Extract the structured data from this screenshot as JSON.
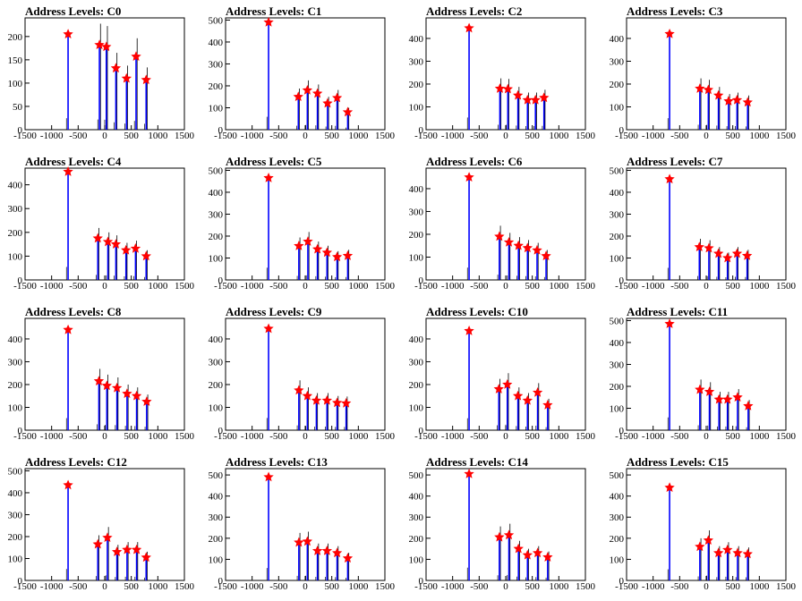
{
  "figure": {
    "xticks": [
      -1500,
      -1000,
      -500,
      0,
      500,
      1000,
      1500
    ],
    "xlim": [
      -1500,
      1500
    ],
    "colors": {
      "histogram": "#0000ff",
      "spike": "#000000",
      "marker": "#ff0000",
      "axis": "#000000"
    }
  },
  "chart_data": [
    {
      "type": "bar",
      "title": "Address Levels: C0",
      "ylim": [
        0,
        240
      ],
      "yticks": [
        0,
        50,
        100,
        150,
        200
      ],
      "peaks": [
        {
          "x": -690,
          "y": 205
        },
        {
          "x": -100,
          "y": 182
        },
        {
          "x": 30,
          "y": 178
        },
        {
          "x": 210,
          "y": 132
        },
        {
          "x": 410,
          "y": 110
        },
        {
          "x": 590,
          "y": 157
        },
        {
          "x": 780,
          "y": 107
        }
      ]
    },
    {
      "type": "bar",
      "title": "Address Levels: C1",
      "ylim": [
        0,
        510
      ],
      "yticks": [
        0,
        100,
        200,
        300,
        400,
        500
      ],
      "peaks": [
        {
          "x": -690,
          "y": 490
        },
        {
          "x": -130,
          "y": 150
        },
        {
          "x": 40,
          "y": 180
        },
        {
          "x": 230,
          "y": 165
        },
        {
          "x": 420,
          "y": 120
        },
        {
          "x": 600,
          "y": 145
        },
        {
          "x": 800,
          "y": 80
        }
      ]
    },
    {
      "type": "bar",
      "title": "Address Levels: C2",
      "ylim": [
        0,
        490
      ],
      "yticks": [
        0,
        100,
        200,
        300,
        400
      ],
      "peaks": [
        {
          "x": -690,
          "y": 445
        },
        {
          "x": -110,
          "y": 180
        },
        {
          "x": 40,
          "y": 178
        },
        {
          "x": 230,
          "y": 150
        },
        {
          "x": 410,
          "y": 130
        },
        {
          "x": 560,
          "y": 130
        },
        {
          "x": 720,
          "y": 140
        }
      ]
    },
    {
      "type": "bar",
      "title": "Address Levels: C3",
      "ylim": [
        0,
        490
      ],
      "yticks": [
        0,
        100,
        200,
        300,
        400
      ],
      "peaks": [
        {
          "x": -690,
          "y": 420
        },
        {
          "x": -120,
          "y": 180
        },
        {
          "x": 40,
          "y": 175
        },
        {
          "x": 230,
          "y": 150
        },
        {
          "x": 420,
          "y": 125
        },
        {
          "x": 580,
          "y": 130
        },
        {
          "x": 780,
          "y": 120
        }
      ]
    },
    {
      "type": "bar",
      "title": "Address Levels: C4",
      "ylim": [
        0,
        470
      ],
      "yticks": [
        0,
        100,
        200,
        300,
        400
      ],
      "peaks": [
        {
          "x": -690,
          "y": 455
        },
        {
          "x": -130,
          "y": 175
        },
        {
          "x": 60,
          "y": 160
        },
        {
          "x": 210,
          "y": 150
        },
        {
          "x": 400,
          "y": 125
        },
        {
          "x": 580,
          "y": 132
        },
        {
          "x": 780,
          "y": 100
        }
      ]
    },
    {
      "type": "bar",
      "title": "Address Levels: C5",
      "ylim": [
        0,
        510
      ],
      "yticks": [
        0,
        100,
        200,
        300,
        400,
        500
      ],
      "peaks": [
        {
          "x": -690,
          "y": 465
        },
        {
          "x": -120,
          "y": 155
        },
        {
          "x": 50,
          "y": 175
        },
        {
          "x": 230,
          "y": 140
        },
        {
          "x": 410,
          "y": 125
        },
        {
          "x": 600,
          "y": 105
        },
        {
          "x": 800,
          "y": 110
        }
      ]
    },
    {
      "type": "bar",
      "title": "Address Levels: C6",
      "ylim": [
        0,
        490
      ],
      "yticks": [
        0,
        100,
        200,
        300,
        400
      ],
      "peaks": [
        {
          "x": -690,
          "y": 450
        },
        {
          "x": -120,
          "y": 190
        },
        {
          "x": 60,
          "y": 165
        },
        {
          "x": 240,
          "y": 150
        },
        {
          "x": 410,
          "y": 140
        },
        {
          "x": 590,
          "y": 130
        },
        {
          "x": 760,
          "y": 105
        }
      ]
    },
    {
      "type": "bar",
      "title": "Address Levels: C7",
      "ylim": [
        0,
        510
      ],
      "yticks": [
        0,
        100,
        200,
        300,
        400,
        500
      ],
      "peaks": [
        {
          "x": -690,
          "y": 460
        },
        {
          "x": -130,
          "y": 150
        },
        {
          "x": 50,
          "y": 145
        },
        {
          "x": 230,
          "y": 120
        },
        {
          "x": 400,
          "y": 100
        },
        {
          "x": 580,
          "y": 120
        },
        {
          "x": 770,
          "y": 110
        }
      ]
    },
    {
      "type": "bar",
      "title": "Address Levels: C8",
      "ylim": [
        0,
        490
      ],
      "yticks": [
        0,
        100,
        200,
        300,
        400
      ],
      "peaks": [
        {
          "x": -690,
          "y": 440
        },
        {
          "x": -110,
          "y": 215
        },
        {
          "x": 40,
          "y": 195
        },
        {
          "x": 230,
          "y": 185
        },
        {
          "x": 420,
          "y": 160
        },
        {
          "x": 600,
          "y": 150
        },
        {
          "x": 790,
          "y": 125
        }
      ]
    },
    {
      "type": "bar",
      "title": "Address Levels: C9",
      "ylim": [
        0,
        490
      ],
      "yticks": [
        0,
        100,
        200,
        300,
        400
      ],
      "peaks": [
        {
          "x": -690,
          "y": 445
        },
        {
          "x": -120,
          "y": 175
        },
        {
          "x": 40,
          "y": 150
        },
        {
          "x": 210,
          "y": 130
        },
        {
          "x": 410,
          "y": 130
        },
        {
          "x": 600,
          "y": 120
        },
        {
          "x": 770,
          "y": 118
        }
      ]
    },
    {
      "type": "bar",
      "title": "Address Levels: C10",
      "ylim": [
        0,
        490
      ],
      "yticks": [
        0,
        100,
        200,
        300,
        400
      ],
      "peaks": [
        {
          "x": -690,
          "y": 435
        },
        {
          "x": -130,
          "y": 180
        },
        {
          "x": 30,
          "y": 200
        },
        {
          "x": 230,
          "y": 150
        },
        {
          "x": 410,
          "y": 130
        },
        {
          "x": 600,
          "y": 165
        },
        {
          "x": 790,
          "y": 110
        }
      ]
    },
    {
      "type": "bar",
      "title": "Address Levels: C11",
      "ylim": [
        0,
        510
      ],
      "yticks": [
        0,
        100,
        200,
        300,
        400,
        500
      ],
      "peaks": [
        {
          "x": -690,
          "y": 485
        },
        {
          "x": -120,
          "y": 185
        },
        {
          "x": 60,
          "y": 175
        },
        {
          "x": 240,
          "y": 140
        },
        {
          "x": 400,
          "y": 140
        },
        {
          "x": 590,
          "y": 150
        },
        {
          "x": 790,
          "y": 110
        }
      ]
    },
    {
      "type": "bar",
      "title": "Address Levels: C12",
      "ylim": [
        0,
        510
      ],
      "yticks": [
        0,
        100,
        200,
        300,
        400,
        500
      ],
      "peaks": [
        {
          "x": -690,
          "y": 435
        },
        {
          "x": -130,
          "y": 165
        },
        {
          "x": 50,
          "y": 195
        },
        {
          "x": 230,
          "y": 130
        },
        {
          "x": 420,
          "y": 140
        },
        {
          "x": 600,
          "y": 140
        },
        {
          "x": 780,
          "y": 105
        }
      ]
    },
    {
      "type": "bar",
      "title": "Address Levels: C13",
      "ylim": [
        0,
        530
      ],
      "yticks": [
        0,
        100,
        200,
        300,
        400,
        500
      ],
      "peaks": [
        {
          "x": -690,
          "y": 490
        },
        {
          "x": -120,
          "y": 180
        },
        {
          "x": 40,
          "y": 185
        },
        {
          "x": 230,
          "y": 140
        },
        {
          "x": 410,
          "y": 140
        },
        {
          "x": 600,
          "y": 130
        },
        {
          "x": 800,
          "y": 105
        }
      ]
    },
    {
      "type": "bar",
      "title": "Address Levels: C14",
      "ylim": [
        0,
        530
      ],
      "yticks": [
        0,
        100,
        200,
        300,
        400,
        500
      ],
      "peaks": [
        {
          "x": -690,
          "y": 505
        },
        {
          "x": -120,
          "y": 205
        },
        {
          "x": 60,
          "y": 215
        },
        {
          "x": 240,
          "y": 150
        },
        {
          "x": 410,
          "y": 120
        },
        {
          "x": 600,
          "y": 130
        },
        {
          "x": 790,
          "y": 110
        }
      ]
    },
    {
      "type": "bar",
      "title": "Address Levels: C15",
      "ylim": [
        0,
        530
      ],
      "yticks": [
        0,
        100,
        200,
        300,
        400,
        500
      ],
      "peaks": [
        {
          "x": -690,
          "y": 440
        },
        {
          "x": -120,
          "y": 160
        },
        {
          "x": 40,
          "y": 190
        },
        {
          "x": 230,
          "y": 130
        },
        {
          "x": 400,
          "y": 145
        },
        {
          "x": 590,
          "y": 130
        },
        {
          "x": 780,
          "y": 125
        }
      ]
    }
  ]
}
